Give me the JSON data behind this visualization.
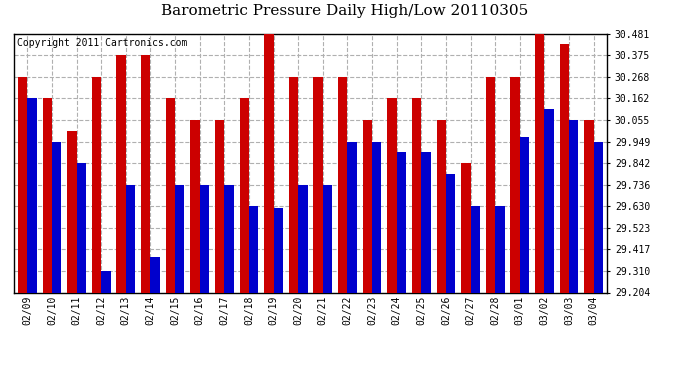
{
  "title": "Barometric Pressure Daily High/Low 20110305",
  "copyright": "Copyright 2011 Cartronics.com",
  "dates": [
    "02/09",
    "02/10",
    "02/11",
    "02/12",
    "02/13",
    "02/14",
    "02/15",
    "02/16",
    "02/17",
    "02/18",
    "02/19",
    "02/20",
    "02/21",
    "02/22",
    "02/23",
    "02/24",
    "02/25",
    "02/26",
    "02/27",
    "02/28",
    "03/01",
    "03/02",
    "03/03",
    "03/04"
  ],
  "highs": [
    30.268,
    30.162,
    30.0,
    30.268,
    30.375,
    30.375,
    30.162,
    30.055,
    30.055,
    30.162,
    30.481,
    30.268,
    30.268,
    30.268,
    30.055,
    30.162,
    30.162,
    30.055,
    29.842,
    30.268,
    30.268,
    30.481,
    30.428,
    30.055
  ],
  "lows": [
    30.162,
    29.949,
    29.842,
    29.31,
    29.736,
    29.38,
    29.736,
    29.736,
    29.736,
    29.63,
    29.62,
    29.736,
    29.736,
    29.949,
    29.949,
    29.895,
    29.895,
    29.79,
    29.63,
    29.63,
    29.97,
    30.108,
    30.055,
    29.949
  ],
  "ymin": 29.204,
  "ymax": 30.481,
  "yticks": [
    29.204,
    29.31,
    29.417,
    29.523,
    29.63,
    29.736,
    29.842,
    29.949,
    30.055,
    30.162,
    30.268,
    30.375,
    30.481
  ],
  "bar_width": 0.38,
  "high_color": "#cc0000",
  "low_color": "#0000cc",
  "bg_color": "#ffffff",
  "grid_color": "#b0b0b0",
  "title_fontsize": 11,
  "copyright_fontsize": 7
}
